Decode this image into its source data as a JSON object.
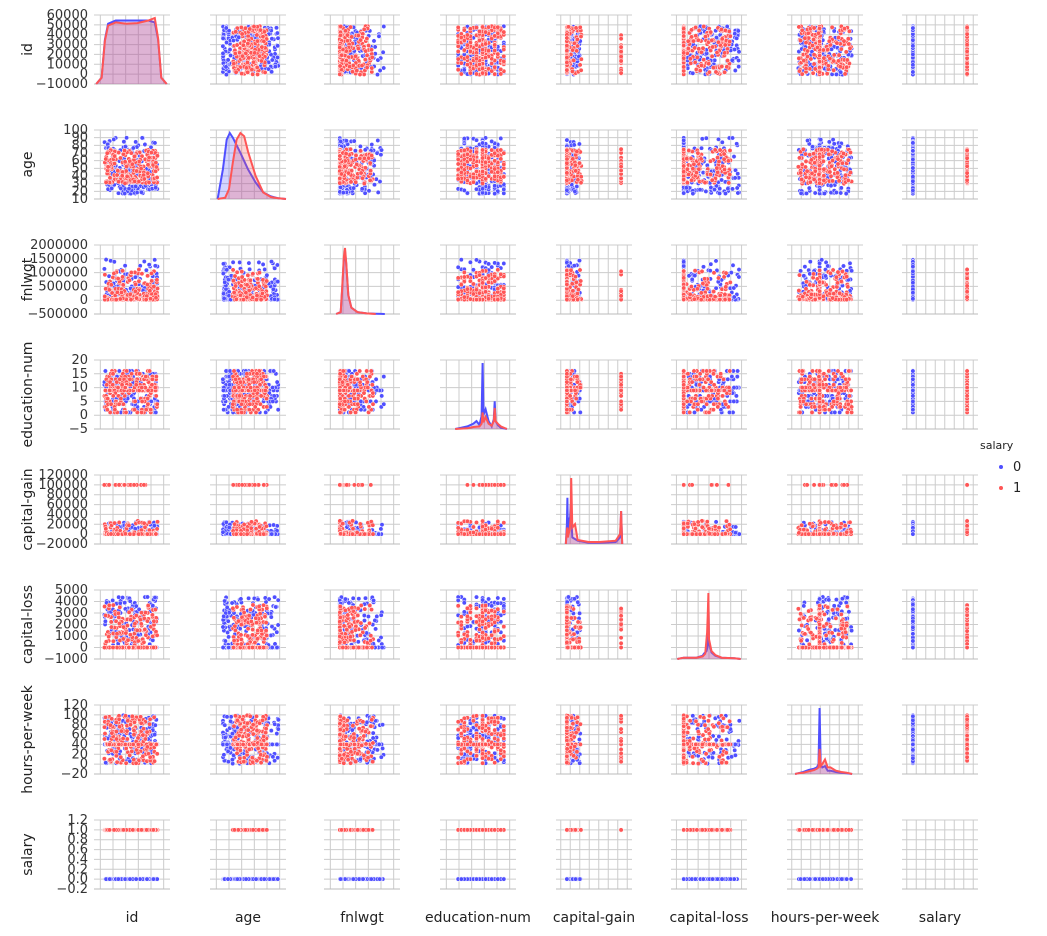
{
  "chart_data": {
    "type": "scatter",
    "subtype": "pairplot",
    "variables": [
      "id",
      "age",
      "fnlwgt",
      "education-num",
      "capital-gain",
      "capital-loss",
      "hours-per-week",
      "salary"
    ],
    "hue": "salary",
    "legend": {
      "title": "salary",
      "placement": "right",
      "entries": [
        {
          "label": "0",
          "color": "#4f4fff"
        },
        {
          "label": "1",
          "color": "#ff5555"
        }
      ]
    },
    "y_axes": [
      {
        "variable": "id",
        "range": [
          -10000,
          60000
        ],
        "ticks": [
          -10000,
          0,
          10000,
          20000,
          30000,
          40000,
          50000,
          60000
        ],
        "tick_labels": [
          "−10000",
          "0",
          "10000",
          "20000",
          "30000",
          "40000",
          "50000",
          "60000"
        ]
      },
      {
        "variable": "age",
        "range": [
          10,
          100
        ],
        "ticks": [
          10,
          20,
          30,
          40,
          50,
          60,
          70,
          80,
          90,
          100
        ],
        "tick_labels": [
          "10",
          "20",
          "30",
          "40",
          "50",
          "60",
          "70",
          "80",
          "90",
          "100"
        ]
      },
      {
        "variable": "fnlwgt",
        "range": [
          -500000,
          2000000
        ],
        "ticks": [
          -500000,
          0,
          500000,
          1000000,
          1500000,
          2000000
        ],
        "tick_labels": [
          "−500000",
          "0",
          "500000",
          "1000000",
          "1500000",
          "2000000"
        ]
      },
      {
        "variable": "education-num",
        "range": [
          -5,
          20
        ],
        "ticks": [
          -5,
          0,
          5,
          10,
          15,
          20
        ],
        "tick_labels": [
          "−5",
          "0",
          "5",
          "10",
          "15",
          "20"
        ]
      },
      {
        "variable": "capital-gain",
        "range": [
          -20000,
          120000
        ],
        "ticks": [
          -20000,
          0,
          20000,
          40000,
          60000,
          80000,
          100000,
          120000
        ],
        "tick_labels": [
          "−20000",
          "0",
          "20000",
          "40000",
          "60000",
          "80000",
          "100000",
          "120000"
        ]
      },
      {
        "variable": "capital-loss",
        "range": [
          -1000,
          5000
        ],
        "ticks": [
          -1000,
          0,
          1000,
          2000,
          3000,
          4000,
          5000
        ],
        "tick_labels": [
          "−1000",
          "0",
          "1000",
          "2000",
          "3000",
          "4000",
          "5000"
        ]
      },
      {
        "variable": "hours-per-week",
        "range": [
          -20,
          120
        ],
        "ticks": [
          -20,
          0,
          20,
          40,
          60,
          80,
          100,
          120
        ],
        "tick_labels": [
          "−20",
          "0",
          "20",
          "40",
          "60",
          "80",
          "100",
          "120"
        ]
      },
      {
        "variable": "salary",
        "range": [
          -0.2,
          1.2
        ],
        "ticks": [
          -0.2,
          0,
          0.2,
          0.4,
          0.6,
          0.8,
          1.0,
          1.2
        ],
        "tick_labels": [
          "−0.2",
          "0.0",
          "0.2",
          "0.4",
          "0.6",
          "0.8",
          "1.0",
          "1.2"
        ]
      }
    ],
    "x_axes": [
      {
        "variable": "id",
        "range": [
          -10000,
          60000
        ],
        "grid_count": 6
      },
      {
        "variable": "age",
        "range": [
          0,
          100
        ],
        "grid_count": 6
      },
      {
        "variable": "fnlwgt",
        "range": [
          -500000,
          2000000
        ],
        "grid_count": 6
      },
      {
        "variable": "education-num",
        "range": [
          -5,
          20
        ],
        "grid_count": 6
      },
      {
        "variable": "capital-gain",
        "range": [
          -20000,
          120000
        ],
        "grid_count": 8
      },
      {
        "variable": "capital-loss",
        "range": [
          -1000,
          5000
        ],
        "grid_count": 7
      },
      {
        "variable": "hours-per-week",
        "range": [
          -20,
          120
        ],
        "grid_count": 8
      },
      {
        "variable": "salary",
        "range": [
          -0.2,
          1.2
        ],
        "grid_count": 8
      }
    ],
    "diagonal": [
      {
        "variable": "id",
        "series": [
          {
            "name": "0",
            "x": [
              -8000,
              -3000,
              0,
              3000,
              10000,
              20000,
              30000,
              40000,
              46000,
              49000,
              52000,
              57000
            ],
            "y": [
              0,
              0.1,
              0.7,
              0.95,
              1.0,
              1.0,
              1.0,
              1.0,
              0.97,
              0.7,
              0.1,
              0
            ]
          },
          {
            "name": "1",
            "x": [
              -8000,
              -3000,
              0,
              3000,
              10000,
              20000,
              30000,
              40000,
              46000,
              49000,
              52000,
              57000
            ],
            "y": [
              0,
              0.1,
              0.68,
              0.92,
              0.97,
              0.95,
              0.96,
              1.0,
              1.04,
              0.72,
              0.1,
              0
            ]
          }
        ]
      },
      {
        "variable": "age",
        "series": [
          {
            "name": "0",
            "x": [
              10,
              17,
              22,
              26,
              30,
              40,
              50,
              60,
              70,
              80,
              90,
              100
            ],
            "y": [
              0,
              0.45,
              0.9,
              1.0,
              0.93,
              0.7,
              0.45,
              0.25,
              0.1,
              0.04,
              0.01,
              0
            ]
          },
          {
            "name": "1",
            "x": [
              10,
              20,
              25,
              30,
              35,
              40,
              45,
              50,
              60,
              70,
              80,
              90,
              100
            ],
            "y": [
              0,
              0.02,
              0.15,
              0.55,
              0.9,
              1.0,
              0.95,
              0.72,
              0.35,
              0.1,
              0.03,
              0.01,
              0
            ]
          }
        ]
      },
      {
        "variable": "fnlwgt",
        "series": [
          {
            "name": "0",
            "x": [
              -100000,
              50000,
              100000,
              150000,
              190000,
              230000,
              300000,
              400000,
              600000,
              900000,
              1200000,
              1500000
            ],
            "y": [
              0,
              0.03,
              0.4,
              0.85,
              1.0,
              0.8,
              0.3,
              0.1,
              0.03,
              0.01,
              0.005,
              0
            ]
          },
          {
            "name": "1",
            "x": [
              -100000,
              50000,
              100000,
              150000,
              190000,
              230000,
              300000,
              400000,
              600000,
              900000,
              1200000
            ],
            "y": [
              0,
              0.03,
              0.42,
              0.9,
              1.05,
              0.82,
              0.3,
              0.1,
              0.03,
              0.01,
              0
            ]
          }
        ]
      },
      {
        "variable": "education-num",
        "series": [
          {
            "name": "0",
            "x": [
              0,
              2,
              4,
              6,
              7,
              8,
              8.7,
              9,
              9.3,
              10,
              11,
              12,
              12.7,
              13,
              13.3,
              14,
              15,
              17
            ],
            "y": [
              0,
              0.02,
              0.04,
              0.08,
              0.12,
              0.06,
              0.2,
              1.0,
              0.22,
              0.3,
              0.12,
              0.04,
              0.15,
              0.42,
              0.12,
              0.06,
              0.02,
              0
            ]
          },
          {
            "name": "1",
            "x": [
              0,
              4,
              6,
              8,
              8.7,
              9,
              9.3,
              10,
              11,
              12,
              12.7,
              13,
              13.3,
              14,
              15,
              17
            ],
            "y": [
              0,
              0.01,
              0.03,
              0.04,
              0.08,
              0.25,
              0.1,
              0.18,
              0.08,
              0.05,
              0.12,
              0.32,
              0.12,
              0.08,
              0.04,
              0
            ]
          }
        ]
      },
      {
        "variable": "capital-gain",
        "series": [
          {
            "name": "0",
            "x": [
              -2000,
              0,
              1000,
              2000,
              3000,
              5000,
              7000,
              10000,
              20000,
              40000,
              60000,
              90000,
              98000,
              100000,
              102000
            ],
            "y": [
              0,
              0.3,
              0.7,
              0.2,
              0.4,
              0.25,
              0.6,
              0.1,
              0.05,
              0.02,
              0.02,
              0.03,
              0.1,
              0.5,
              0
            ]
          },
          {
            "name": "1",
            "x": [
              -2000,
              0,
              1000,
              2000,
              3000,
              5000,
              7000,
              8000,
              10000,
              15000,
              20000,
              40000,
              60000,
              90000,
              98000,
              100000,
              102000
            ],
            "y": [
              0,
              0.2,
              0.25,
              0.1,
              0.15,
              0.2,
              0.4,
              1.0,
              0.25,
              0.3,
              0.06,
              0.03,
              0.03,
              0.05,
              0.15,
              0.5,
              0
            ]
          }
        ]
      },
      {
        "variable": "capital-loss",
        "series": [
          {
            "name": "0",
            "x": [
              -500,
              0,
              1000,
              1500,
              1600,
              1800,
              1900,
              1950,
              2000,
              2200,
              2500,
              3000,
              4000,
              4500
            ],
            "y": [
              0,
              0.02,
              0.02,
              0.05,
              0.08,
              0.12,
              0.2,
              0.85,
              0.25,
              0.1,
              0.05,
              0.02,
              0.01,
              0
            ]
          },
          {
            "name": "1",
            "x": [
              -500,
              0,
              1000,
              1500,
              1700,
              1850,
              1900,
              1950,
              2000,
              2200,
              2500,
              3000,
              4000,
              4500
            ],
            "y": [
              0,
              0.02,
              0.02,
              0.04,
              0.08,
              0.4,
              0.65,
              1.0,
              0.3,
              0.12,
              0.06,
              0.02,
              0.01,
              0
            ]
          }
        ]
      },
      {
        "variable": "hours-per-week",
        "series": [
          {
            "name": "0",
            "x": [
              -5,
              0,
              10,
              20,
              30,
              35,
              38,
              40,
              42,
              45,
              50,
              55,
              60,
              70,
              80,
              90,
              100
            ],
            "y": [
              0,
              0.01,
              0.03,
              0.06,
              0.08,
              0.1,
              0.15,
              1.0,
              0.15,
              0.1,
              0.12,
              0.05,
              0.05,
              0.03,
              0.02,
              0.01,
              0
            ]
          },
          {
            "name": "1",
            "x": [
              -5,
              0,
              10,
              20,
              30,
              35,
              38,
              40,
              42,
              45,
              50,
              55,
              60,
              70,
              80,
              90,
              100
            ],
            "y": [
              0,
              0.01,
              0.02,
              0.04,
              0.06,
              0.08,
              0.1,
              0.38,
              0.12,
              0.15,
              0.22,
              0.1,
              0.1,
              0.05,
              0.03,
              0.02,
              0
            ]
          }
        ]
      },
      {
        "variable": "salary",
        "series": []
      }
    ],
    "description_note": "Off-diagonal panels are scatter plots of row variable vs column variable, colored by salary (0 blue, 1 red)."
  }
}
